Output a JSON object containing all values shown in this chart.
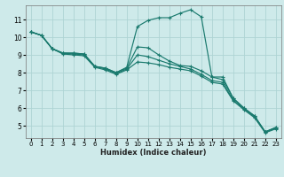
{
  "xlabel": "Humidex (Indice chaleur)",
  "bg_color": "#ceeaea",
  "grid_color": "#aed4d4",
  "line_color": "#1a7a6e",
  "xlim": [
    -0.5,
    23.5
  ],
  "ylim": [
    4.3,
    11.8
  ],
  "xticks": [
    0,
    1,
    2,
    3,
    4,
    5,
    6,
    7,
    8,
    9,
    10,
    11,
    12,
    13,
    14,
    15,
    16,
    17,
    18,
    19,
    20,
    21,
    22,
    23
  ],
  "yticks": [
    5,
    6,
    7,
    8,
    9,
    10,
    11
  ],
  "lines": [
    {
      "x": [
        0,
        1,
        2,
        3,
        4,
        5,
        6,
        7,
        8,
        9,
        10,
        11,
        12,
        13,
        14,
        15,
        16,
        17,
        18,
        19,
        20,
        21,
        22,
        23
      ],
      "y": [
        10.3,
        10.1,
        9.35,
        9.1,
        9.1,
        9.05,
        8.35,
        8.25,
        8.0,
        8.3,
        10.6,
        10.95,
        11.1,
        11.1,
        11.35,
        11.55,
        11.15,
        7.75,
        7.75,
        6.55,
        6.0,
        5.55,
        4.65,
        4.9
      ]
    },
    {
      "x": [
        0,
        1,
        2,
        3,
        4,
        5,
        6,
        7,
        8,
        9,
        10,
        11,
        12,
        13,
        14,
        15,
        16,
        17,
        18,
        19,
        20,
        21,
        22,
        23
      ],
      "y": [
        10.3,
        10.1,
        9.35,
        9.1,
        9.1,
        9.05,
        8.35,
        8.25,
        8.0,
        8.25,
        9.45,
        9.4,
        9.0,
        8.65,
        8.4,
        8.35,
        8.1,
        7.75,
        7.6,
        6.55,
        6.0,
        5.55,
        4.65,
        4.9
      ]
    },
    {
      "x": [
        0,
        1,
        2,
        3,
        4,
        5,
        6,
        7,
        8,
        9,
        10,
        11,
        12,
        13,
        14,
        15,
        16,
        17,
        18,
        19,
        20,
        21,
        22,
        23
      ],
      "y": [
        10.3,
        10.1,
        9.35,
        9.1,
        9.05,
        9.0,
        8.35,
        8.2,
        7.95,
        8.2,
        9.0,
        8.9,
        8.7,
        8.5,
        8.35,
        8.2,
        7.9,
        7.55,
        7.45,
        6.45,
        5.95,
        5.5,
        4.65,
        4.85
      ]
    },
    {
      "x": [
        0,
        1,
        2,
        3,
        4,
        5,
        6,
        7,
        8,
        9,
        10,
        11,
        12,
        13,
        14,
        15,
        16,
        17,
        18,
        19,
        20,
        21,
        22,
        23
      ],
      "y": [
        10.3,
        10.1,
        9.35,
        9.05,
        9.0,
        8.95,
        8.3,
        8.15,
        7.9,
        8.15,
        8.6,
        8.55,
        8.45,
        8.3,
        8.2,
        8.1,
        7.8,
        7.45,
        7.35,
        6.4,
        5.9,
        5.45,
        4.6,
        4.82
      ]
    }
  ]
}
